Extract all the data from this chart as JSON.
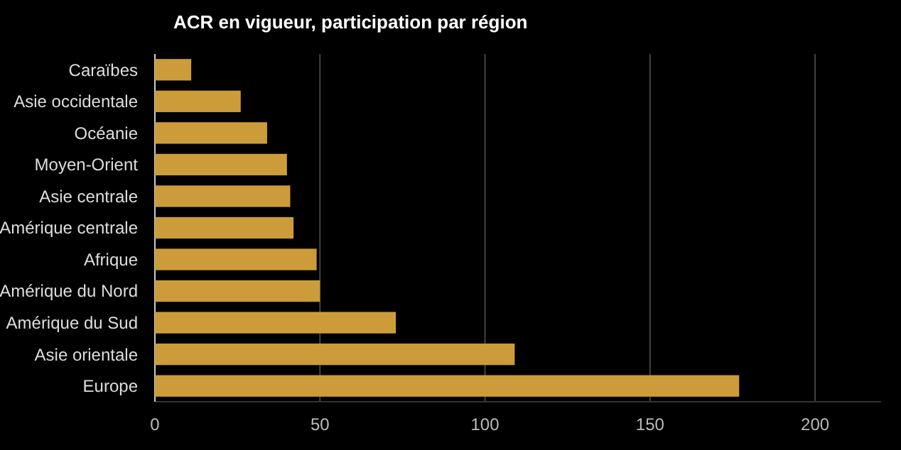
{
  "chart_data": {
    "type": "bar",
    "orientation": "horizontal",
    "title": "ACR en vigueur, participation par région",
    "categories": [
      "Caraïbes",
      "Asie occidentale",
      "Océanie",
      "Moyen-Orient",
      "Asie centrale",
      "Amérique centrale",
      "Afrique",
      "Amérique du Nord",
      "Amérique du Sud",
      "Asie orientale",
      "Europe"
    ],
    "values": [
      11,
      26,
      34,
      40,
      41,
      42,
      49,
      50,
      73,
      109,
      177
    ],
    "color": "#cc9c3a",
    "xlim": [
      0,
      220
    ],
    "xticks": [
      0,
      50,
      100,
      150,
      200
    ],
    "grid": "x"
  }
}
